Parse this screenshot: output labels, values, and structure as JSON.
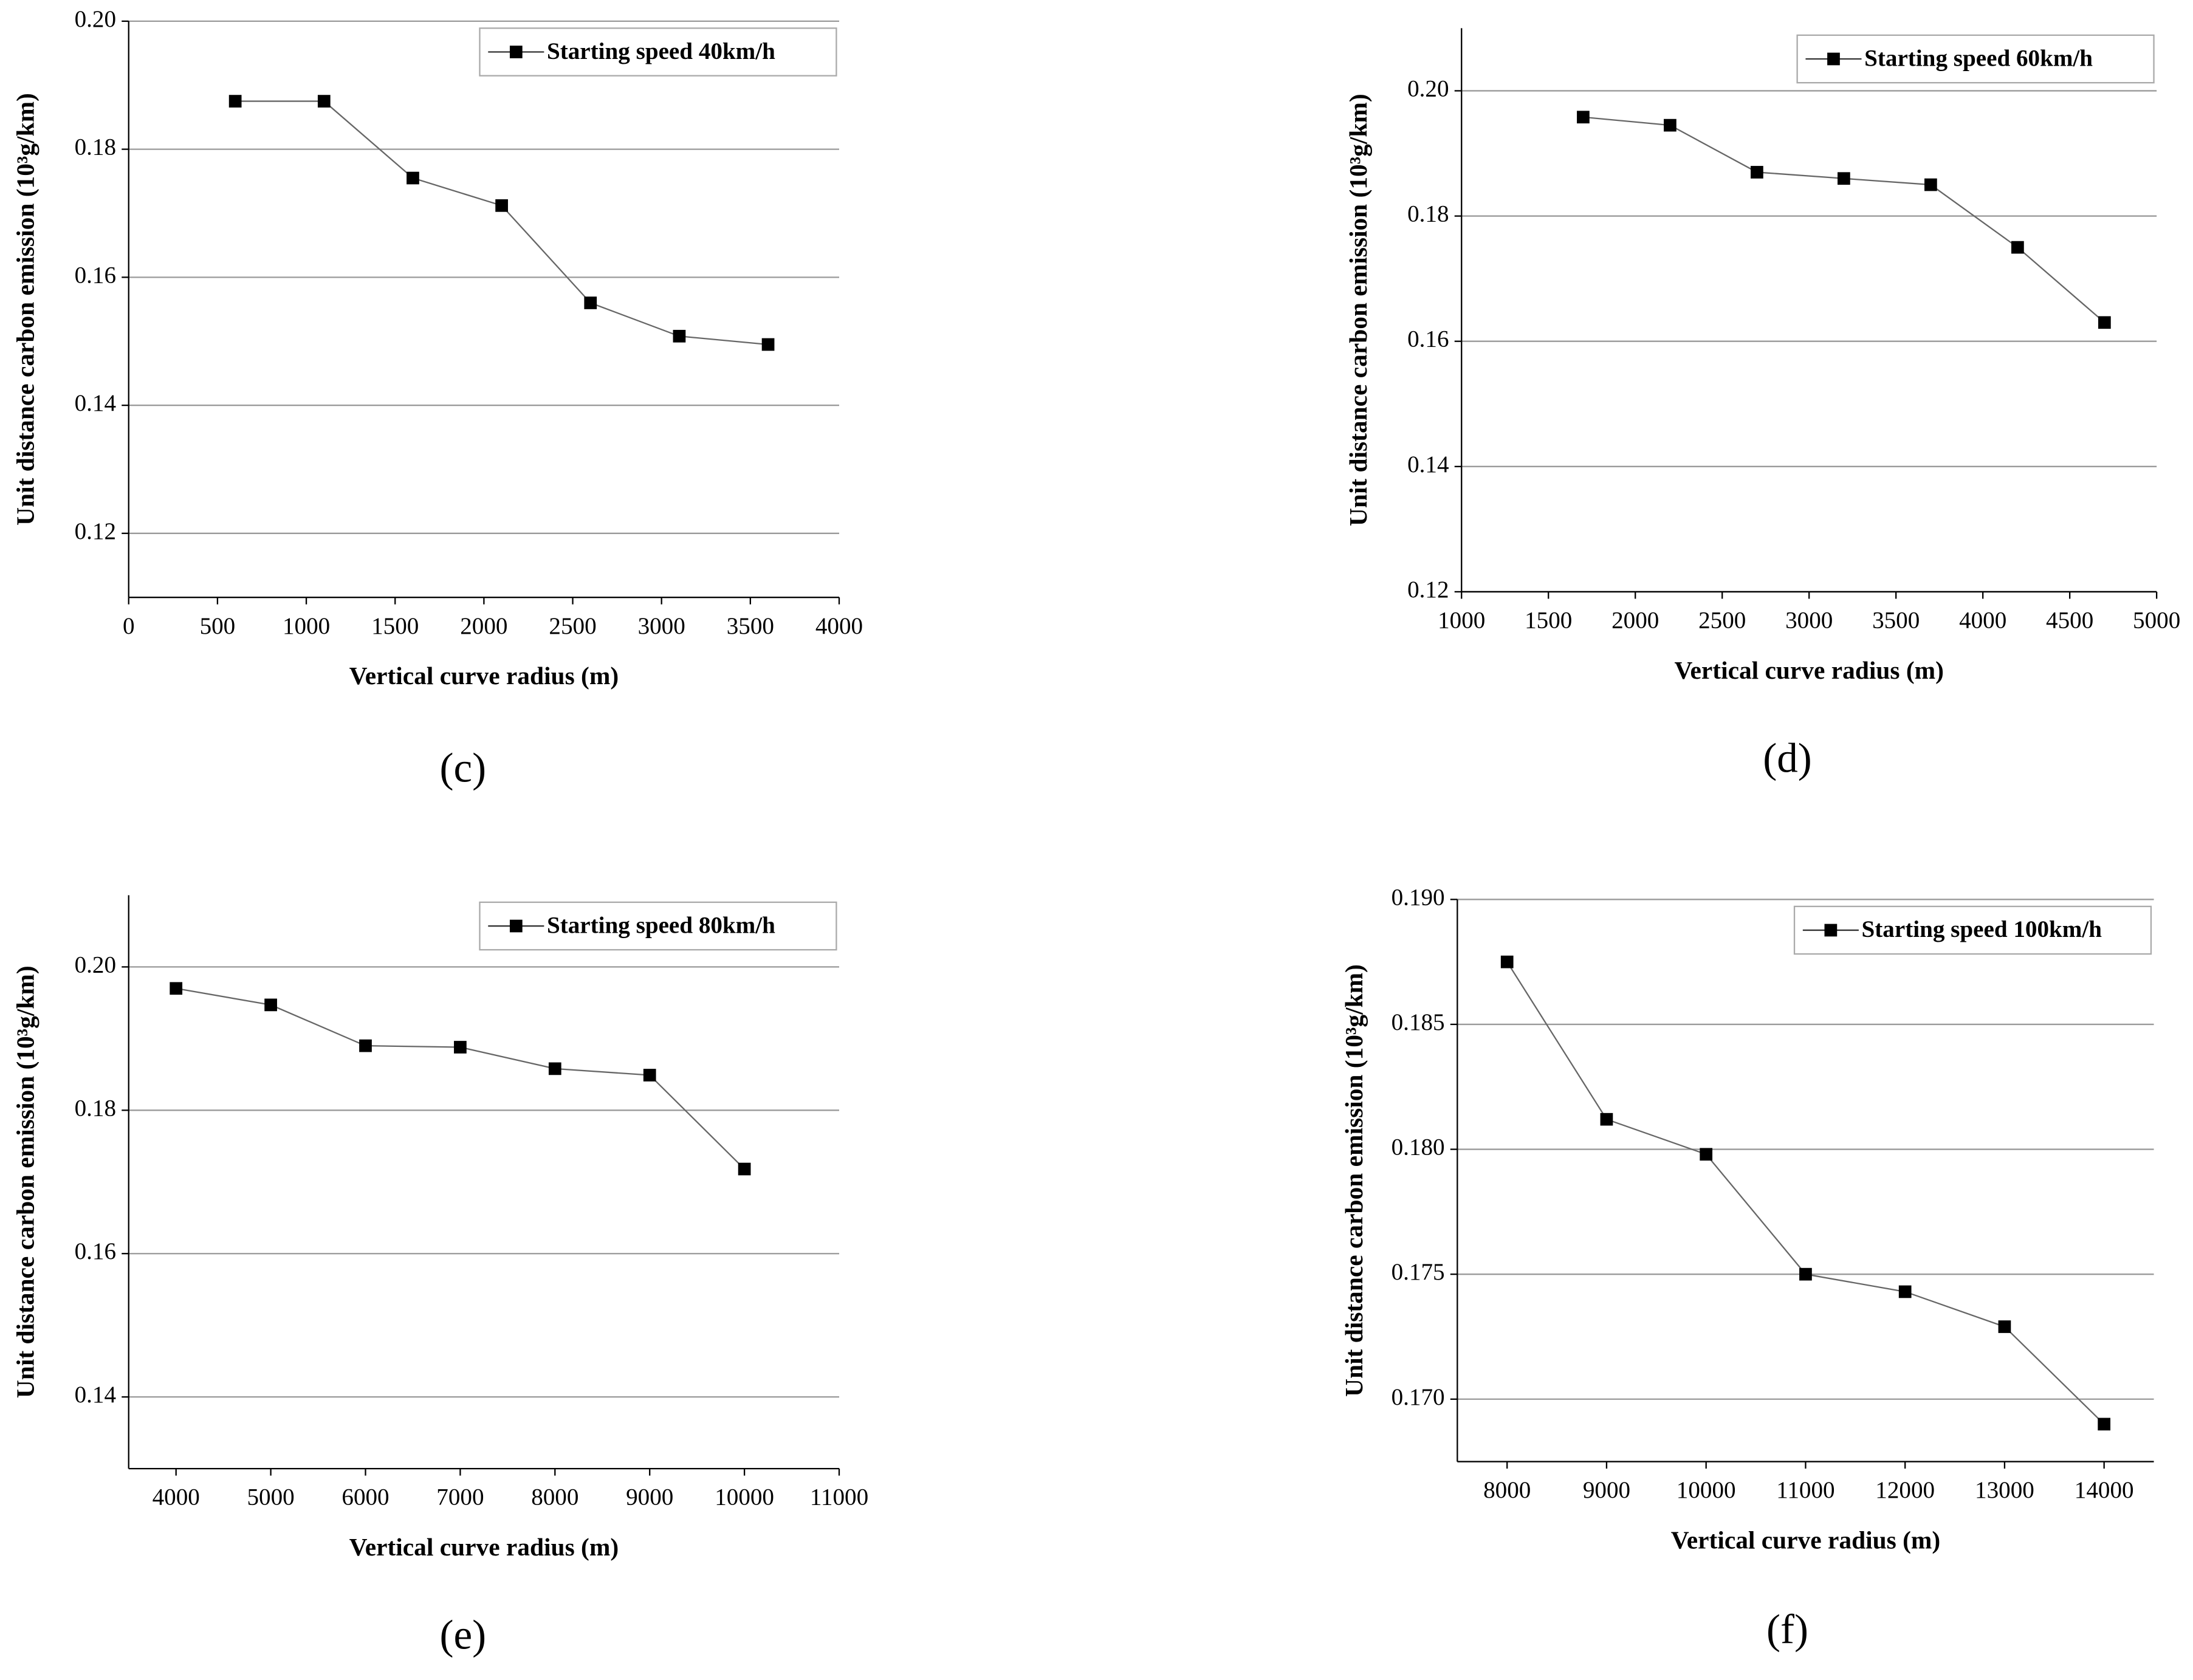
{
  "chart_data": [
    {
      "type": "line",
      "label": "(c)",
      "xlabel": "Vertical curve radius (m)",
      "ylabel": "Unit distance carbon emission (10³g/km)",
      "x": [
        600,
        1100,
        1600,
        2100,
        2600,
        3100,
        3600
      ],
      "series": [
        {
          "name": "Starting speed 40km/h",
          "color": "#000000",
          "values": [
            0.1875,
            0.1875,
            0.1755,
            0.1712,
            0.156,
            0.1508,
            0.1495
          ]
        }
      ],
      "xlim": [
        0,
        4000
      ],
      "xticks": [
        0,
        500,
        1000,
        1500,
        2000,
        2500,
        3000,
        3500,
        4000
      ],
      "ylim": [
        0.11,
        0.2
      ],
      "yticks": [
        0.12,
        0.14,
        0.16,
        0.18,
        {
          "value": 0.2,
          "label": "0.20"
        }
      ],
      "grid": true,
      "legend": "upper right"
    },
    {
      "type": "line",
      "label": "(d)",
      "xlabel": "Vertical curve radius (m)",
      "ylabel": "Unit distance carbon emission (10³g/km)",
      "x": [
        1700,
        2200,
        2700,
        3200,
        3700,
        4200,
        4700
      ],
      "series": [
        {
          "name": "Starting speed 60km/h",
          "color": "#000000",
          "values": [
            0.1958,
            0.1945,
            0.187,
            0.186,
            0.185,
            0.175,
            0.163
          ]
        }
      ],
      "xlim": [
        1000,
        5000
      ],
      "xticks": [
        1000,
        1500,
        2000,
        2500,
        3000,
        3500,
        4000,
        4500,
        5000
      ],
      "ylim": [
        0.12,
        0.21
      ],
      "yticks": [
        0.12,
        0.14,
        0.16,
        0.18,
        {
          "value": 0.2,
          "label": "0.20"
        }
      ],
      "grid": true,
      "legend": "upper right"
    },
    {
      "type": "line",
      "label": "(e)",
      "xlabel": "Vertical curve radius (m)",
      "ylabel": "Unit distance carbon emission (10³g/km)",
      "x": [
        4000,
        5000,
        6000,
        7000,
        8000,
        9000,
        10000
      ],
      "series": [
        {
          "name": "Starting speed 80km/h",
          "color": "#000000",
          "values": [
            0.197,
            0.1947,
            0.189,
            0.1888,
            0.1858,
            0.1849,
            0.1718
          ]
        }
      ],
      "xlim": [
        3500,
        11000
      ],
      "xticks": [
        4000,
        5000,
        6000,
        7000,
        8000,
        9000,
        10000,
        11000
      ],
      "ylim": [
        0.13,
        0.21
      ],
      "yticks": [
        0.14,
        0.16,
        0.18,
        {
          "value": 0.2,
          "label": "0.20"
        }
      ],
      "grid": true,
      "legend": "upper right"
    },
    {
      "type": "line",
      "label": "(f)",
      "xlabel": "Vertical curve radius (m)",
      "ylabel": "Unit distance carbon emission (10³g/km)",
      "x": [
        8000,
        9000,
        10000,
        11000,
        12000,
        13000,
        14000
      ],
      "series": [
        {
          "name": "Starting speed 100km/h",
          "color": "#000000",
          "values": [
            0.1875,
            0.1812,
            0.1798,
            0.175,
            0.1743,
            0.1729,
            0.169
          ]
        }
      ],
      "xlim": [
        7500,
        14500
      ],
      "xticks": [
        8000,
        9000,
        10000,
        11000,
        12000,
        13000,
        14000
      ],
      "ylim": [
        0.1675,
        0.19
      ],
      "yticks": [
        {
          "value": 0.17,
          "label": "0.170"
        },
        0.175,
        {
          "value": 0.18,
          "label": "0.180"
        },
        0.185,
        {
          "value": 0.19,
          "label": "0.190"
        }
      ],
      "grid": true,
      "legend": "upper right"
    }
  ]
}
